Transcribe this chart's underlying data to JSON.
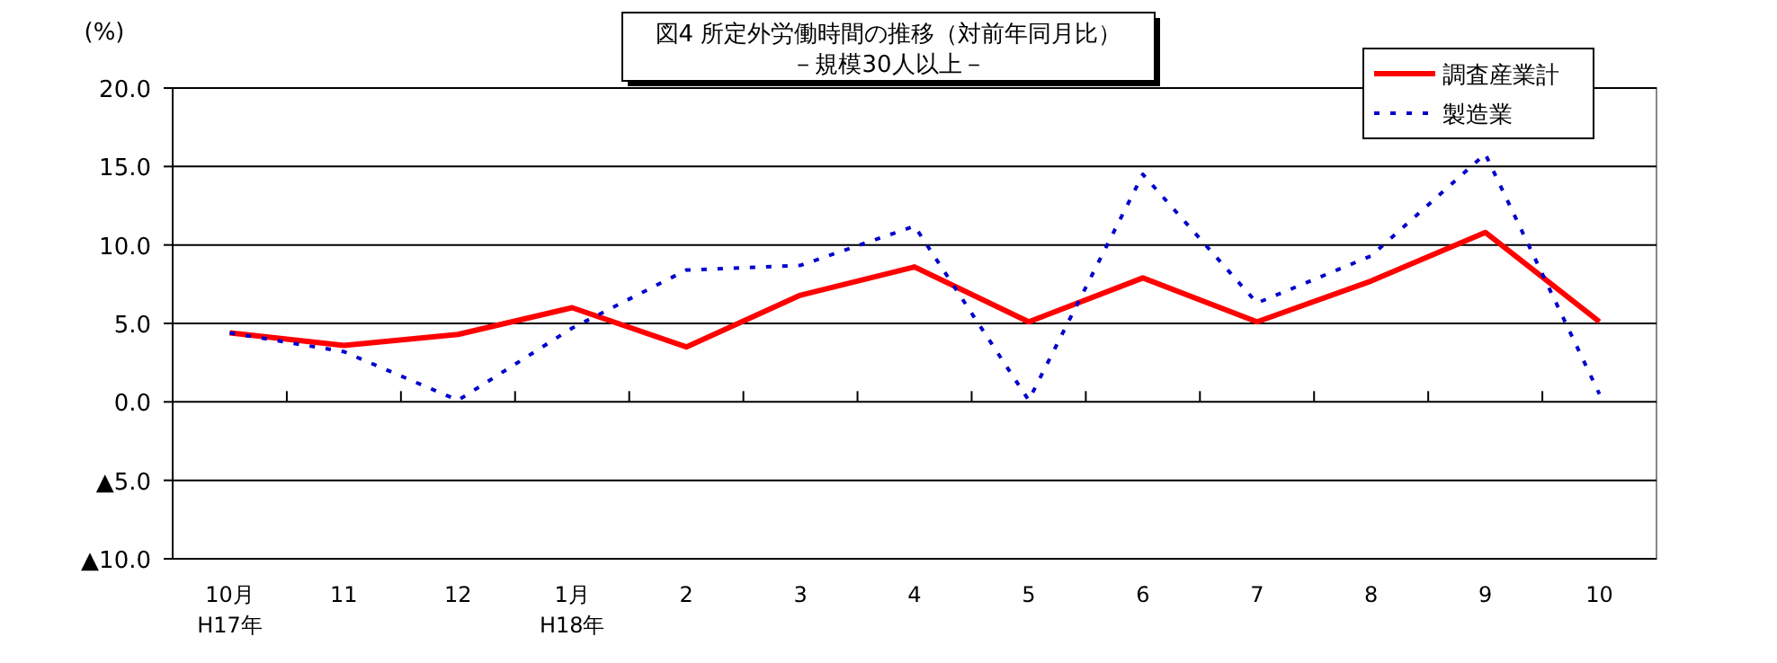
{
  "chart_data": {
    "type": "line",
    "title": "図4  所定外労働時間の推移（対前年同月比）",
    "subtitle": "－規模30人以上－",
    "ylabel": "(%)",
    "categories": [
      "10月\nH17年",
      "11",
      "12",
      "1月\nH18年",
      "2",
      "3",
      "4",
      "5",
      "6",
      "7",
      "8",
      "9",
      "10"
    ],
    "series": [
      {
        "name": "調査産業計",
        "color": "#ff0000",
        "line_style": "solid",
        "values": [
          4.4,
          3.6,
          4.3,
          6.0,
          3.5,
          6.8,
          8.6,
          5.1,
          7.9,
          5.1,
          7.7,
          10.8,
          5.1
        ]
      },
      {
        "name": "製造業",
        "color": "#0000cc",
        "line_style": "dotted",
        "values": [
          4.4,
          3.2,
          0.1,
          4.7,
          8.4,
          8.7,
          11.2,
          0.1,
          14.5,
          6.3,
          9.3,
          15.8,
          0.5
        ]
      }
    ],
    "ylim": [
      -10,
      20
    ],
    "yticks": [
      {
        "value": -10,
        "label": "▲10.0"
      },
      {
        "value": -5,
        "label": "▲5.0"
      },
      {
        "value": 0,
        "label": "0.0"
      },
      {
        "value": 5,
        "label": "5.0"
      },
      {
        "value": 10,
        "label": "10.0"
      },
      {
        "value": 15,
        "label": "15.0"
      },
      {
        "value": 20,
        "label": "20.0"
      }
    ],
    "grid": "y",
    "legend": "top right"
  }
}
